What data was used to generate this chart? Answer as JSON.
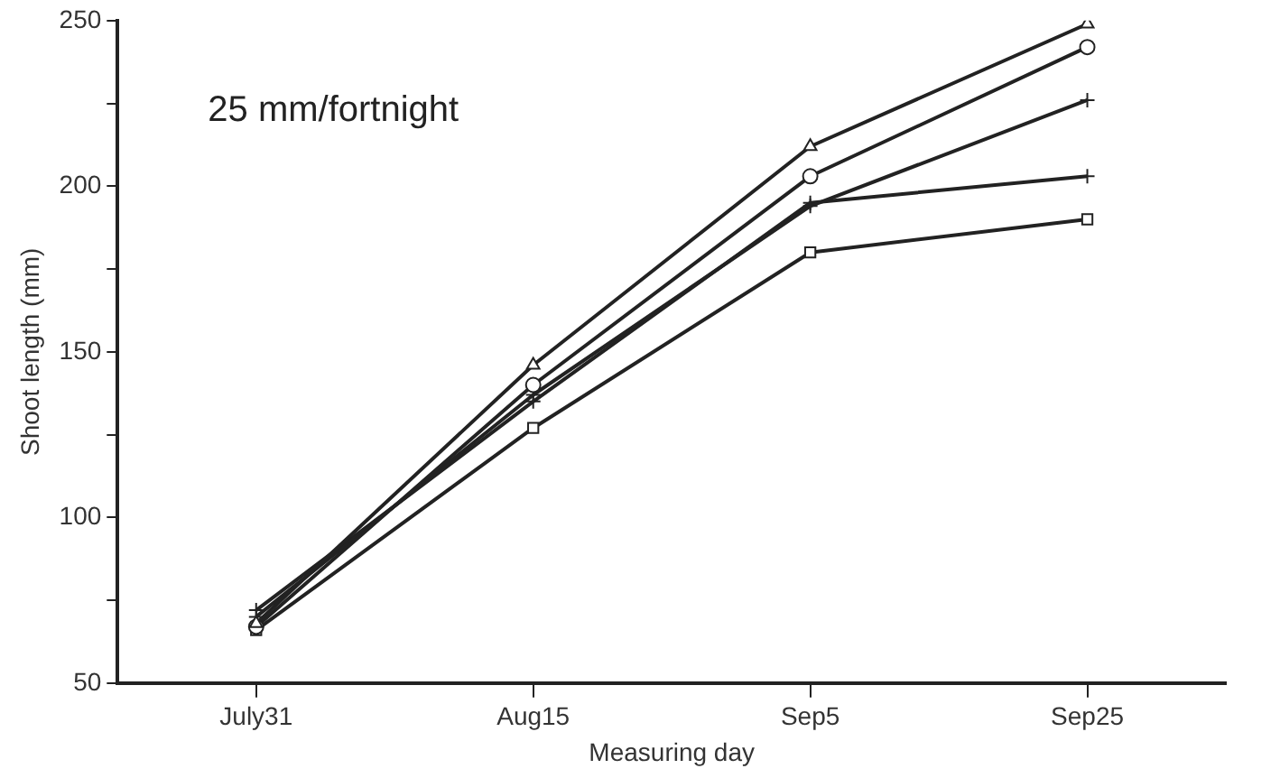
{
  "chart_data": {
    "type": "line",
    "xlabel": "Measuring day",
    "ylabel": "Shoot length (mm)",
    "annotations": [
      "25 mm/fortnight"
    ],
    "categories": [
      "July31",
      "Aug15",
      "Sep5",
      "Sep25"
    ],
    "series": [
      {
        "color": "#222222",
        "marker": "triangle",
        "values": [
          68,
          146,
          212,
          249
        ]
      },
      {
        "color": "#222222",
        "marker": "circle",
        "values": [
          67,
          140,
          203,
          242
        ]
      },
      {
        "color": "#222222",
        "marker": "cross",
        "values": [
          70,
          137,
          194,
          226
        ]
      },
      {
        "color": "#222222",
        "marker": "cross",
        "values": [
          72,
          135,
          195,
          203
        ]
      },
      {
        "color": "#222222",
        "marker": "square",
        "values": [
          66,
          127,
          180,
          190
        ]
      }
    ],
    "ylim": [
      50,
      250
    ],
    "yticks": [
      50,
      {
        "value": 75,
        "label": null
      },
      100,
      {
        "value": 125,
        "label": null
      },
      150,
      {
        "value": 175,
        "label": null
      },
      200,
      {
        "value": 225,
        "label": null
      },
      250
    ],
    "grid": false,
    "legend": false
  }
}
